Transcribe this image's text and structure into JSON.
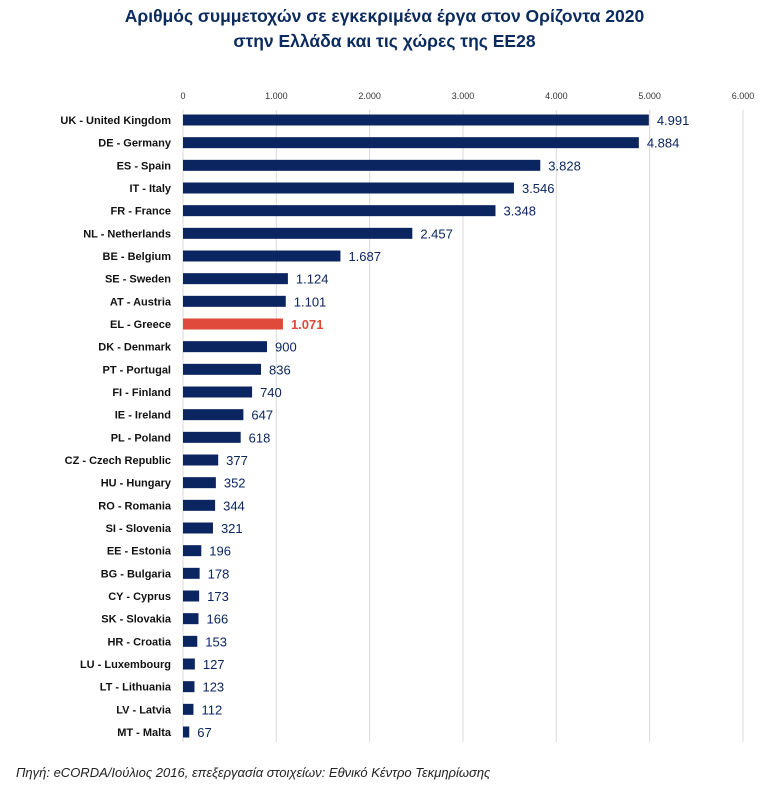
{
  "chart_data": {
    "type": "bar",
    "orientation": "horizontal",
    "title_lines": [
      "Αριθμός συμμετοχών σε εγκεκριμένα έργα στον Ορίζοντα 2020",
      "στην Ελλάδα και τις χώρες της ΕΕ28"
    ],
    "categories": [
      "UK - United Kingdom",
      "DE - Germany",
      "ES - Spain",
      "IT - Italy",
      "FR - France",
      "NL - Netherlands",
      "BE - Belgium",
      "SE - Sweden",
      "AT - Austria",
      "EL - Greece",
      "DK - Denmark",
      "PT - Portugal",
      "FI - Finland",
      "IE - Ireland",
      "PL - Poland",
      "CZ - Czech Republic",
      "HU - Hungary",
      "RO - Romania",
      "SI - Slovenia",
      "EE - Estonia",
      "BG - Bulgaria",
      "CY - Cyprus",
      "SK - Slovakia",
      "HR - Croatia",
      "LU - Luxembourg",
      "LT - Lithuania",
      "LV - Latvia",
      "MT - Malta"
    ],
    "values": [
      4991,
      4884,
      3828,
      3546,
      3348,
      2457,
      1687,
      1124,
      1101,
      1071,
      900,
      836,
      740,
      647,
      618,
      377,
      352,
      344,
      321,
      196,
      178,
      173,
      166,
      153,
      127,
      123,
      112,
      67
    ],
    "data_labels": [
      "4.991",
      "4.884",
      "3.828",
      "3.546",
      "3.348",
      "2.457",
      "1.687",
      "1.124",
      "1.101",
      "1.071",
      "900",
      "836",
      "740",
      "647",
      "618",
      "377",
      "352",
      "344",
      "321",
      "196",
      "178",
      "173",
      "166",
      "153",
      "127",
      "123",
      "112",
      "67"
    ],
    "highlight": "EL - Greece",
    "xlim": [
      0,
      6000
    ],
    "xticks": [
      0,
      1000,
      2000,
      3000,
      4000,
      5000,
      6000
    ],
    "xtick_labels": [
      "0",
      "1.000",
      "2.000",
      "3.000",
      "4.000",
      "5.000",
      "6.000"
    ],
    "axis_position": "top",
    "grid": true,
    "colors": {
      "bar": "#0b2560",
      "highlight": "#e04a3a",
      "label": "#0b2560",
      "grid": "#d9d9d9"
    }
  },
  "source": "Πηγή: eCORDA/Ιούλιος 2016, επεξεργασία στοιχείων: Εθνικό Κέντρο Τεκμηρίωσης"
}
